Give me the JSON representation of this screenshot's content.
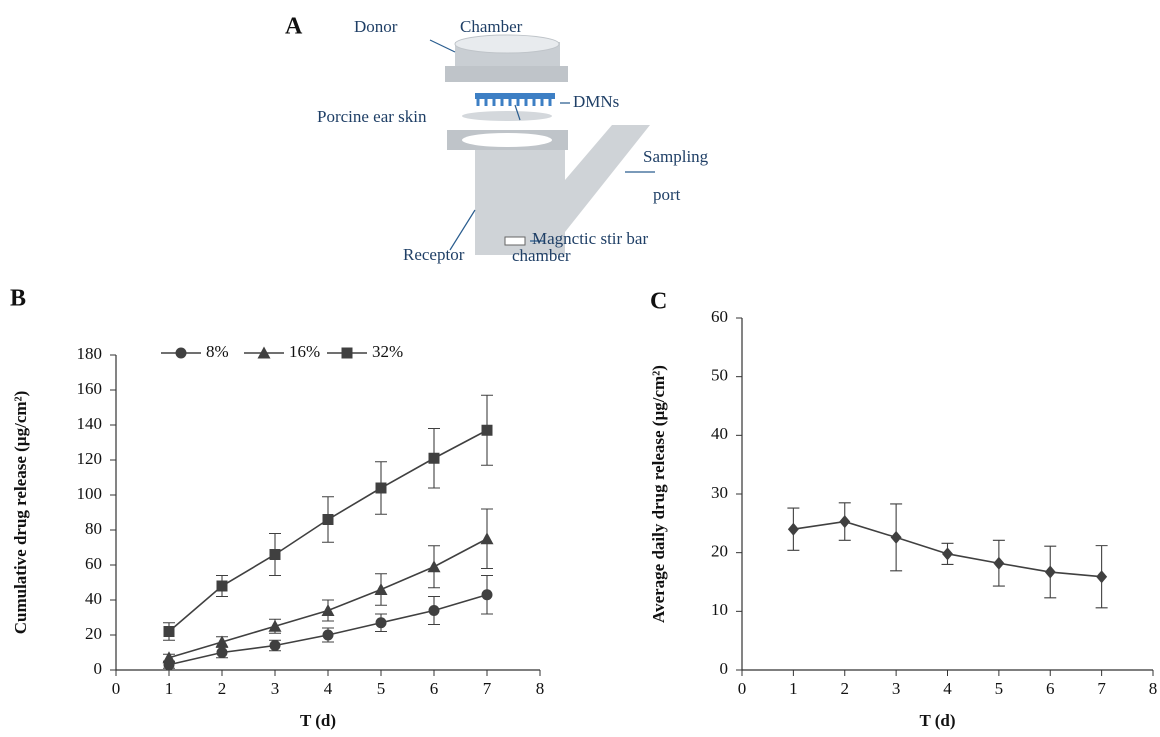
{
  "diagram": {
    "panel": "A",
    "labels": [
      "Donor",
      "Chamber",
      "DMNs",
      "Porcine ear skin",
      "Sampling",
      "port",
      "Receptor",
      "Magnctic stir bar",
      "chamber"
    ]
  },
  "chart_data": [
    {
      "type": "line",
      "panel": "B",
      "y_label": "Cumulative drug release (µg/cm²)",
      "x_label": "T (d)",
      "x": [
        1,
        2,
        3,
        4,
        5,
        6,
        7
      ],
      "xlim": [
        0,
        8
      ],
      "xticks": [
        0,
        1,
        2,
        3,
        4,
        5,
        6,
        7,
        8
      ],
      "ylim": [
        0,
        180
      ],
      "yticks": [
        0,
        20,
        40,
        60,
        80,
        100,
        120,
        140,
        160,
        180
      ],
      "legend": "top",
      "series": [
        {
          "name": "8%",
          "color": "#404040",
          "marker": "circle",
          "values": [
            3,
            10,
            14,
            20,
            27,
            34,
            43
          ],
          "errors": [
            2,
            3,
            3,
            4,
            5,
            8,
            11
          ]
        },
        {
          "name": "16%",
          "color": "#404040",
          "marker": "triangle",
          "values": [
            7,
            16,
            25,
            34,
            46,
            59,
            75
          ],
          "errors": [
            2,
            3,
            4,
            6,
            9,
            12,
            17
          ]
        },
        {
          "name": "32%",
          "color": "#404040",
          "marker": "square",
          "values": [
            22,
            48,
            66,
            86,
            104,
            121,
            137
          ],
          "errors": [
            5,
            6,
            12,
            13,
            15,
            17,
            20
          ]
        }
      ]
    },
    {
      "type": "line",
      "panel": "C",
      "y_label": "Average daily drug release (µg/cm²)",
      "x_label": "T (d)",
      "x": [
        1,
        2,
        3,
        4,
        5,
        6,
        7
      ],
      "xlim": [
        0,
        8
      ],
      "xticks": [
        0,
        1,
        2,
        3,
        4,
        5,
        6,
        7,
        8
      ],
      "ylim": [
        0,
        60
      ],
      "yticks": [
        0,
        10,
        20,
        30,
        40,
        50,
        60
      ],
      "series": [
        {
          "color": "#404040",
          "marker": "diamond",
          "values": [
            24,
            25.3,
            22.6,
            19.8,
            18.2,
            16.7,
            15.9
          ],
          "errors": [
            3.6,
            3.2,
            5.7,
            1.8,
            3.9,
            4.4,
            5.3
          ]
        }
      ]
    }
  ]
}
